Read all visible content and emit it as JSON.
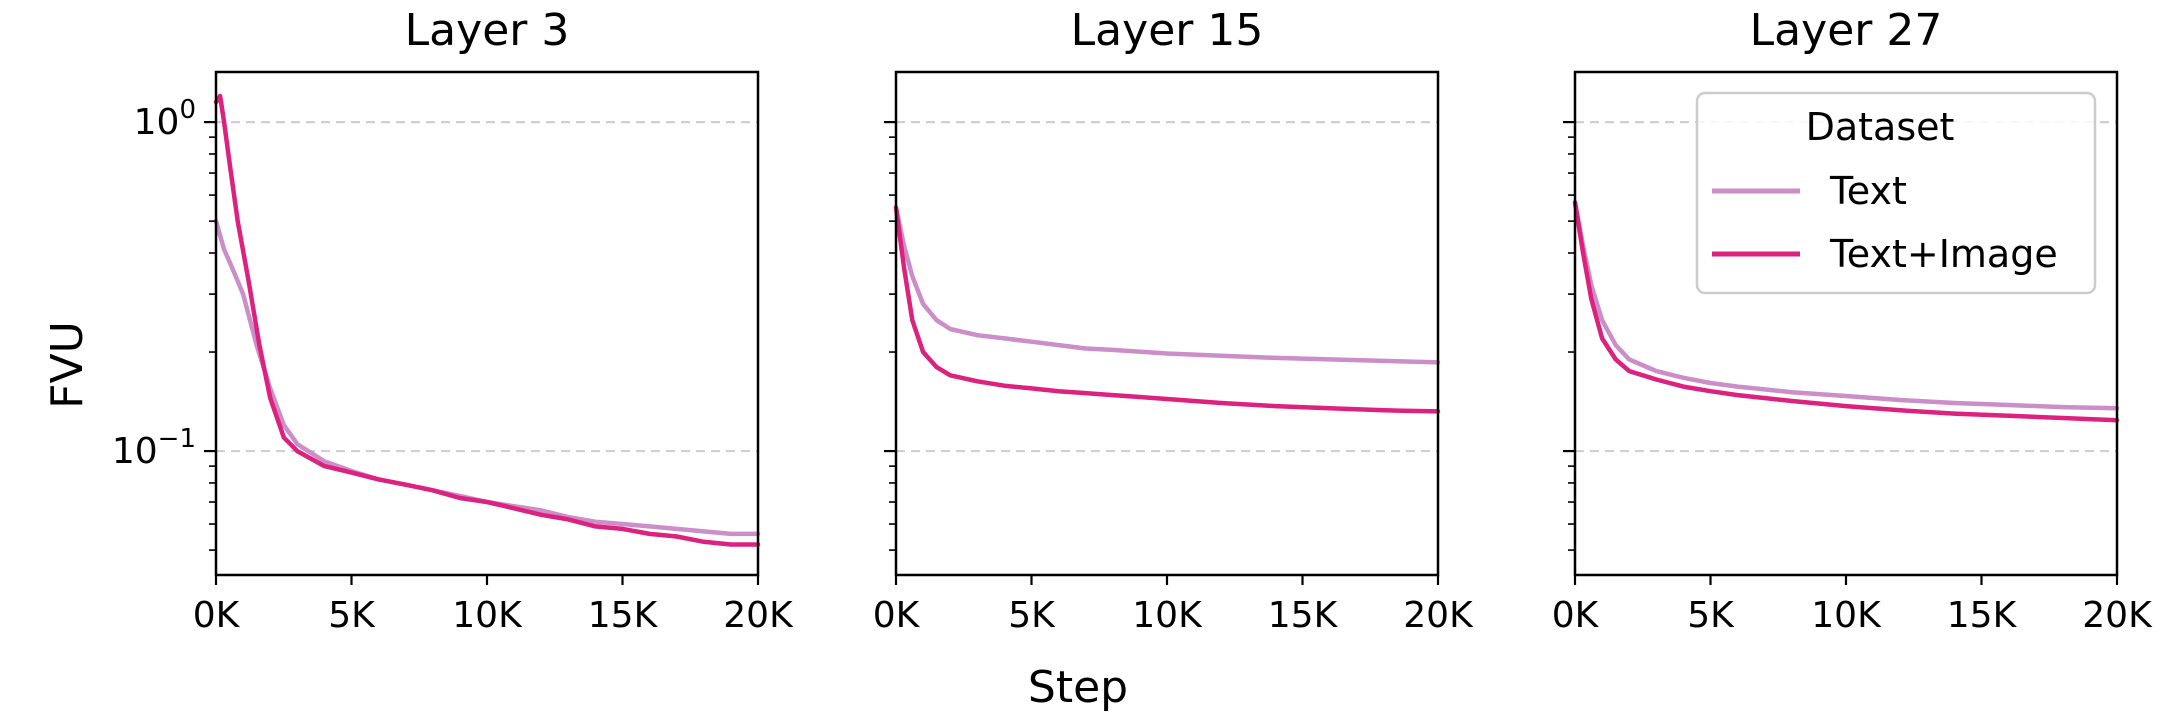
{
  "figure": {
    "shared_xlabel": "Step",
    "shared_ylabel": "FVU"
  },
  "legend": {
    "title": "Dataset",
    "placement": "upper-right of third panel",
    "entries": [
      {
        "label": "Text",
        "color": "#cc8ec8"
      },
      {
        "label": "Text+Image",
        "color": "#dd217f"
      }
    ]
  },
  "chart_data": [
    {
      "type": "line",
      "title": "Layer 3",
      "xlabel": "",
      "ylabel": "FVU",
      "yscale": "log",
      "xlim": [
        0,
        20000
      ],
      "ylim": [
        0.042,
        1.42
      ],
      "xticks": [
        0,
        5000,
        10000,
        15000,
        20000
      ],
      "xtick_labels": [
        "0K",
        "5K",
        "10K",
        "15K",
        "20K"
      ],
      "yticks": [
        {
          "value": 1,
          "label": "10^0"
        },
        {
          "value": 0.1,
          "label": "10^-1"
        }
      ],
      "grid": "horizontal dashed at major y ticks",
      "series": [
        {
          "name": "Text",
          "color": "#cc8ec8",
          "x": [
            0,
            300,
            600,
            1000,
            1500,
            2000,
            2500,
            3000,
            4000,
            5000,
            6000,
            7000,
            8000,
            9000,
            10000,
            11000,
            12000,
            13000,
            14000,
            15000,
            16000,
            17000,
            18000,
            19000,
            20000
          ],
          "y": [
            0.5,
            0.41,
            0.36,
            0.3,
            0.21,
            0.155,
            0.12,
            0.105,
            0.093,
            0.087,
            0.082,
            0.079,
            0.076,
            0.073,
            0.07,
            0.068,
            0.066,
            0.063,
            0.061,
            0.06,
            0.059,
            0.058,
            0.057,
            0.056,
            0.056
          ]
        },
        {
          "name": "Text+Image",
          "color": "#dd217f",
          "x": [
            0,
            150,
            300,
            500,
            800,
            1200,
            1600,
            2000,
            2500,
            3000,
            4000,
            5000,
            6000,
            7000,
            8000,
            9000,
            10000,
            11000,
            12000,
            13000,
            14000,
            15000,
            16000,
            17000,
            18000,
            19000,
            20000
          ],
          "y": [
            1.15,
            1.2,
            1.0,
            0.75,
            0.5,
            0.33,
            0.21,
            0.145,
            0.11,
            0.1,
            0.09,
            0.086,
            0.082,
            0.079,
            0.076,
            0.072,
            0.07,
            0.067,
            0.064,
            0.062,
            0.059,
            0.058,
            0.056,
            0.055,
            0.053,
            0.052,
            0.052
          ]
        }
      ]
    },
    {
      "type": "line",
      "title": "Layer 15",
      "xlabel": "",
      "ylabel": "",
      "yscale": "log",
      "xlim": [
        0,
        20000
      ],
      "ylim": [
        0.042,
        1.42
      ],
      "xticks": [
        0,
        5000,
        10000,
        15000,
        20000
      ],
      "xtick_labels": [
        "0K",
        "5K",
        "10K",
        "15K",
        "20K"
      ],
      "grid": "horizontal dashed at major y ticks",
      "series": [
        {
          "name": "Text",
          "color": "#cc8ec8",
          "x": [
            0,
            300,
            600,
            1000,
            1500,
            2000,
            3000,
            4000,
            5000,
            6000,
            7000,
            8000,
            10000,
            12000,
            14000,
            16000,
            18000,
            20000
          ],
          "y": [
            0.55,
            0.42,
            0.34,
            0.28,
            0.25,
            0.235,
            0.225,
            0.22,
            0.215,
            0.21,
            0.205,
            0.203,
            0.198,
            0.195,
            0.192,
            0.19,
            0.188,
            0.186
          ]
        },
        {
          "name": "Text+Image",
          "color": "#dd217f",
          "x": [
            0,
            300,
            600,
            1000,
            1500,
            2000,
            3000,
            4000,
            5000,
            6000,
            7000,
            8000,
            9000,
            10000,
            11000,
            12000,
            14000,
            16000,
            18000,
            20000
          ],
          "y": [
            0.55,
            0.36,
            0.25,
            0.2,
            0.18,
            0.17,
            0.163,
            0.158,
            0.155,
            0.152,
            0.15,
            0.148,
            0.146,
            0.144,
            0.142,
            0.14,
            0.137,
            0.135,
            0.133,
            0.132
          ]
        }
      ]
    },
    {
      "type": "line",
      "title": "Layer 27",
      "xlabel": "",
      "ylabel": "",
      "yscale": "log",
      "xlim": [
        0,
        20000
      ],
      "ylim": [
        0.042,
        1.42
      ],
      "xticks": [
        0,
        5000,
        10000,
        15000,
        20000
      ],
      "xtick_labels": [
        "0K",
        "5K",
        "10K",
        "15K",
        "20K"
      ],
      "grid": "horizontal dashed at major y ticks",
      "series": [
        {
          "name": "Text",
          "color": "#cc8ec8",
          "x": [
            0,
            300,
            600,
            1000,
            1500,
            2000,
            3000,
            4000,
            5000,
            6000,
            8000,
            10000,
            12000,
            14000,
            16000,
            18000,
            20000
          ],
          "y": [
            0.57,
            0.42,
            0.32,
            0.25,
            0.21,
            0.19,
            0.175,
            0.167,
            0.161,
            0.157,
            0.151,
            0.147,
            0.143,
            0.14,
            0.138,
            0.136,
            0.135
          ]
        },
        {
          "name": "Text+Image",
          "color": "#dd217f",
          "x": [
            0,
            300,
            600,
            1000,
            1500,
            2000,
            3000,
            4000,
            5000,
            6000,
            8000,
            10000,
            12000,
            14000,
            16000,
            18000,
            20000
          ],
          "y": [
            0.57,
            0.4,
            0.29,
            0.22,
            0.19,
            0.175,
            0.165,
            0.157,
            0.152,
            0.148,
            0.142,
            0.137,
            0.133,
            0.13,
            0.128,
            0.126,
            0.124
          ]
        }
      ]
    }
  ]
}
